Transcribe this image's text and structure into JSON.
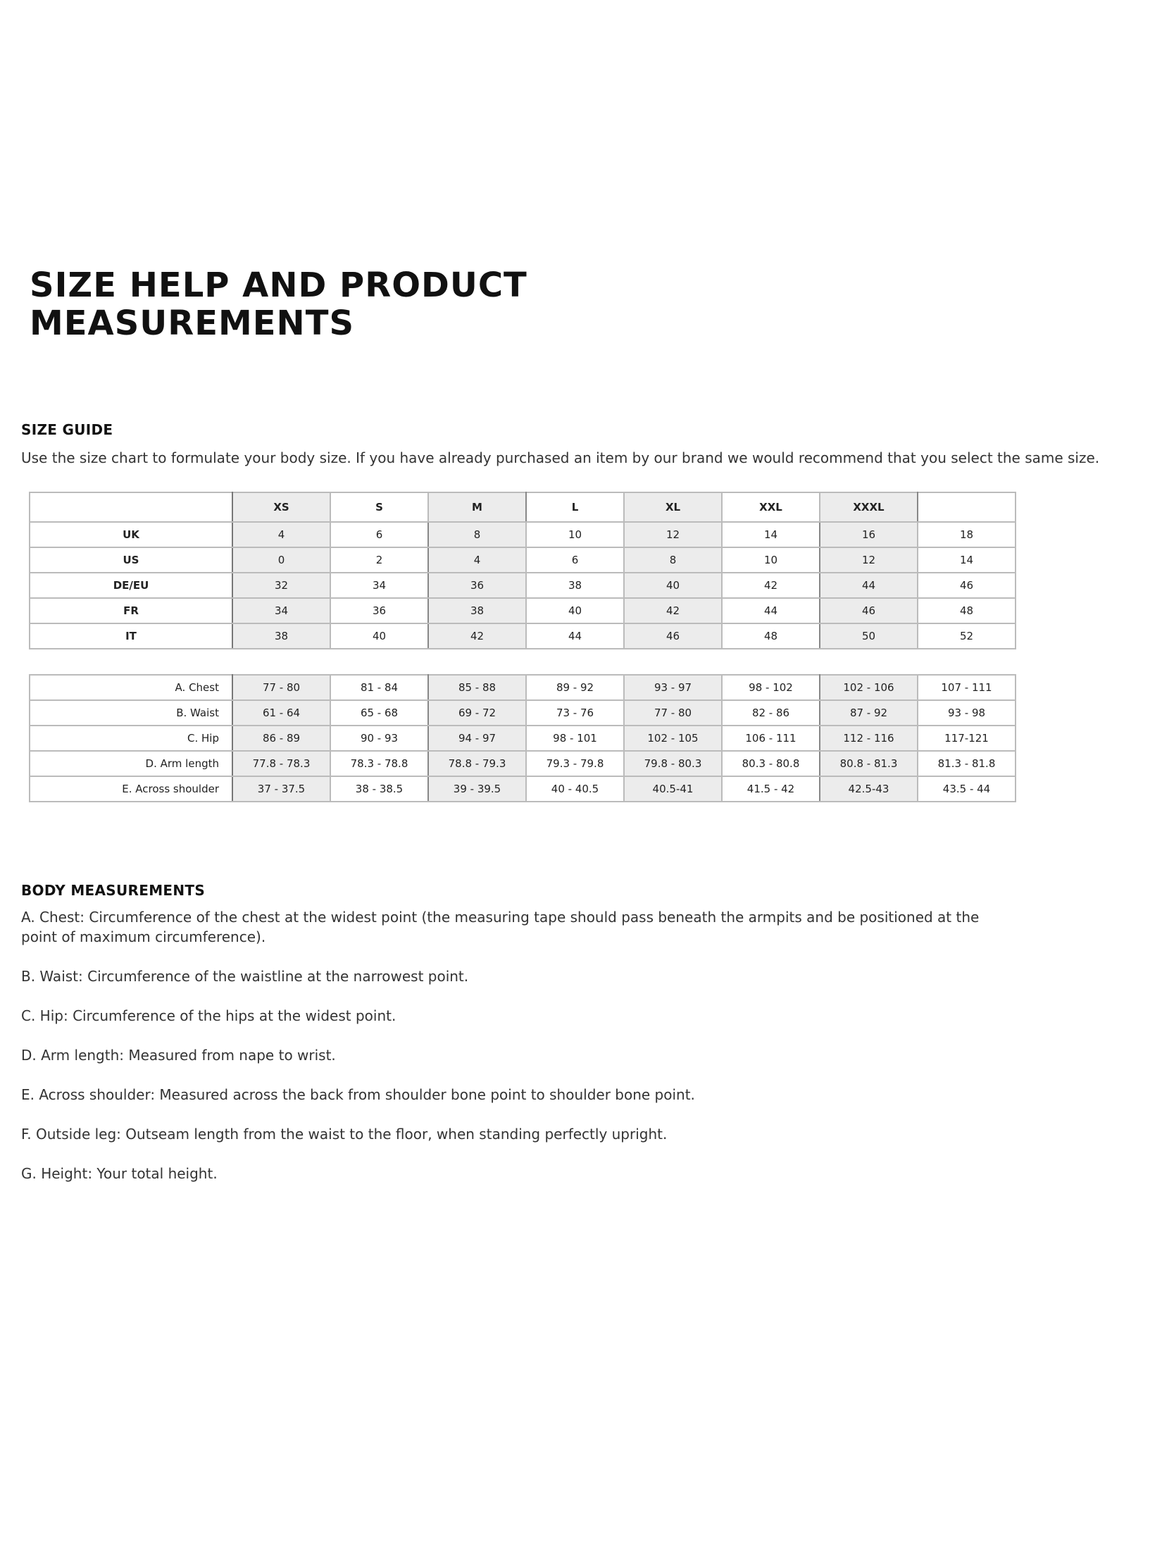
{
  "title_lines": [
    "SIZE HELP AND PRODUCT",
    "MEASUREMENTS"
  ],
  "size_guide": {
    "heading": "SIZE GUIDE",
    "intro": "Use the size chart to formulate your body size. If you have already purchased an item by our brand we would recommend that you select the same size."
  },
  "size_table": {
    "headers": [
      "",
      "XS",
      "S",
      "M",
      "L",
      "XL",
      "XXL",
      "XXXL",
      ""
    ],
    "rows": [
      {
        "label": "UK",
        "values": [
          "4",
          "6",
          "8",
          "10",
          "12",
          "14",
          "16",
          "18"
        ]
      },
      {
        "label": "US",
        "values": [
          "0",
          "2",
          "4",
          "6",
          "8",
          "10",
          "12",
          "14"
        ]
      },
      {
        "label": "DE/EU",
        "values": [
          "32",
          "34",
          "36",
          "38",
          "40",
          "42",
          "44",
          "46"
        ]
      },
      {
        "label": "FR",
        "values": [
          "34",
          "36",
          "38",
          "40",
          "42",
          "44",
          "46",
          "48"
        ]
      },
      {
        "label": "IT",
        "values": [
          "38",
          "40",
          "42",
          "44",
          "46",
          "48",
          "50",
          "52"
        ]
      }
    ]
  },
  "measurement_table": {
    "rows": [
      {
        "label": "A. Chest",
        "values": [
          "77 - 80",
          "81 - 84",
          "85 - 88",
          "89 - 92",
          "93 - 97",
          "98 - 102",
          "102 - 106",
          "107 - 111"
        ]
      },
      {
        "label": "B. Waist",
        "values": [
          "61 - 64",
          "65 - 68",
          "69 - 72",
          "73 - 76",
          "77 - 80",
          "82 - 86",
          "87 - 92",
          "93 - 98"
        ]
      },
      {
        "label": "C. Hip",
        "values": [
          "86 - 89",
          "90 - 93",
          "94 - 97",
          "98 - 101",
          "102 - 105",
          "106 - 111",
          "112 - 116",
          "117-121"
        ]
      },
      {
        "label": "D. Arm length",
        "values": [
          "77.8 - 78.3",
          "78.3 - 78.8",
          "78.8 - 79.3",
          "79.3 - 79.8",
          "79.8 - 80.3",
          "80.3 - 80.8",
          "80.8 - 81.3",
          "81.3 - 81.8"
        ]
      },
      {
        "label": "E. Across shoulder",
        "values": [
          "37 - 37.5",
          "38 - 38.5",
          "39 - 39.5",
          "40 - 40.5",
          "40.5-41",
          "41.5 - 42",
          "42.5-43",
          "43.5 - 44"
        ]
      }
    ]
  },
  "body_measurements": {
    "heading": "BODY MEASUREMENTS",
    "items": [
      "A. Chest: Circumference of the chest at the widest point (the measuring tape should pass beneath the armpits and be positioned at the point of maximum circumference).",
      "B. Waist: Circumference of the waistline at the narrowest point.",
      "C. Hip: Circumference of the hips at the widest point.",
      "D. Arm length: Measured from nape to wrist.",
      "E. Across shoulder: Measured across the back from shoulder bone point to shoulder bone point.",
      "F. Outside leg: Outseam length from the waist to the floor, when standing perfectly upright.",
      "G. Height: Your total height."
    ]
  },
  "colors": {
    "shaded_column": "#ececec",
    "text": "#222222"
  }
}
